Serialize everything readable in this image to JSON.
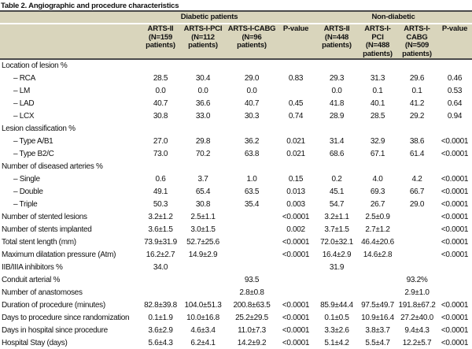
{
  "title": "Table 2. Angiographic and procedure characteristics",
  "colors": {
    "header_bg": "#d9d5bc",
    "rule": "#4a4a4a",
    "text": "#111111"
  },
  "groups": [
    {
      "label": "Diabetic patients"
    },
    {
      "label": "Non-diabetic"
    }
  ],
  "columns": [
    {
      "lines": [
        "ARTS-II",
        "(N=159",
        "patients)"
      ]
    },
    {
      "lines": [
        "ARTS-I-PCI",
        "(N=112",
        "patients)"
      ]
    },
    {
      "lines": [
        "ARTS-I-CABG",
        "(N=96",
        "patients)"
      ]
    },
    {
      "lines": [
        "P-value"
      ]
    },
    {
      "lines": [
        "ARTS-II",
        "(N=448",
        "patients)"
      ]
    },
    {
      "lines": [
        "ARTS-I-PCI",
        "(N=488",
        "patients)"
      ]
    },
    {
      "lines": [
        "ARTS-I-CABG",
        "(N=509",
        "patients)"
      ]
    },
    {
      "lines": [
        "P-value"
      ]
    }
  ],
  "rows": [
    {
      "label": "Location of lesion %",
      "section": true,
      "indent": false,
      "values": [
        "",
        "",
        "",
        "",
        "",
        "",
        "",
        ""
      ]
    },
    {
      "label": "– RCA",
      "section": false,
      "indent": true,
      "values": [
        "28.5",
        "30.4",
        "29.0",
        "0.83",
        "29.3",
        "31.3",
        "29.6",
        "0.46"
      ]
    },
    {
      "label": "– LM",
      "section": false,
      "indent": true,
      "values": [
        "0.0",
        "0.0",
        "0.0",
        "",
        "0.0",
        "0.1",
        "0.1",
        "0.53"
      ]
    },
    {
      "label": "– LAD",
      "section": false,
      "indent": true,
      "values": [
        "40.7",
        "36.6",
        "40.7",
        "0.45",
        "41.8",
        "40.1",
        "41.2",
        "0.64"
      ]
    },
    {
      "label": "– LCX",
      "section": false,
      "indent": true,
      "values": [
        "30.8",
        "33.0",
        "30.3",
        "0.74",
        "28.9",
        "28.5",
        "29.2",
        "0.94"
      ]
    },
    {
      "label": "Lesion classification %",
      "section": true,
      "indent": false,
      "values": [
        "",
        "",
        "",
        "",
        "",
        "",
        "",
        ""
      ]
    },
    {
      "label": "– Type A/B1",
      "section": false,
      "indent": true,
      "values": [
        "27.0",
        "29.8",
        "36.2",
        "0.021",
        "31.4",
        "32.9",
        "38.6",
        "<0.0001"
      ]
    },
    {
      "label": "– Type B2/C",
      "section": false,
      "indent": true,
      "values": [
        "73.0",
        "70.2",
        "63.8",
        "0.021",
        "68.6",
        "67.1",
        "61.4",
        "<0.0001"
      ]
    },
    {
      "label": "Number of diseased arteries %",
      "section": true,
      "indent": false,
      "values": [
        "",
        "",
        "",
        "",
        "",
        "",
        "",
        ""
      ]
    },
    {
      "label": "– Single",
      "section": false,
      "indent": true,
      "values": [
        "0.6",
        "3.7",
        "1.0",
        "0.15",
        "0.2",
        "4.0",
        "4.2",
        "<0.0001"
      ]
    },
    {
      "label": "– Double",
      "section": false,
      "indent": true,
      "values": [
        "49.1",
        "65.4",
        "63.5",
        "0.013",
        "45.1",
        "69.3",
        "66.7",
        "<0.0001"
      ]
    },
    {
      "label": "– Triple",
      "section": false,
      "indent": true,
      "values": [
        "50.3",
        "30.8",
        "35.4",
        "0.003",
        "54.7",
        "26.7",
        "29.0",
        "<0.0001"
      ]
    },
    {
      "label": "Number of stented lesions",
      "section": false,
      "indent": false,
      "values": [
        "3.2±1.2",
        "2.5±1.1",
        "",
        "<0.0001",
        "3.2±1.1",
        "2.5±0.9",
        "",
        "<0.0001"
      ]
    },
    {
      "label": "Number of stents implanted",
      "section": false,
      "indent": false,
      "values": [
        "3.6±1.5",
        "3.0±1.5",
        "",
        "0.002",
        "3.7±1.5",
        "2.7±1.2",
        "",
        "<0.0001"
      ]
    },
    {
      "label": "Total stent length (mm)",
      "section": false,
      "indent": false,
      "values": [
        "73.9±31.9",
        "52.7±25.6",
        "",
        "<0.0001",
        "72.0±32.1",
        "46.4±20.6",
        "",
        "<0.0001"
      ]
    },
    {
      "label": "Maximum dilatation pressure (Atm)",
      "section": false,
      "indent": false,
      "values": [
        "16.2±2.7",
        "14.9±2.9",
        "",
        "<0.0001",
        "16.4±2.9",
        "14.6±2.8",
        "",
        "<0.0001"
      ]
    },
    {
      "label": "IIB/IIIA inhibitors %",
      "section": false,
      "indent": false,
      "values": [
        "34.0",
        "",
        "",
        "",
        "31.9",
        "",
        "",
        ""
      ]
    },
    {
      "label": "Conduit arterial %",
      "section": false,
      "indent": false,
      "values": [
        "",
        "",
        "93.5",
        "",
        "",
        "",
        "93.2%",
        ""
      ]
    },
    {
      "label": "Number of anastomoses",
      "section": false,
      "indent": false,
      "values": [
        "",
        "",
        "2.8±0.8",
        "",
        "",
        "",
        "2.9±1.0",
        ""
      ]
    },
    {
      "label": "Duration of procedure (minutes)",
      "section": false,
      "indent": false,
      "values": [
        "82.8±39.8",
        "104.0±51.3",
        "200.8±63.5",
        "<0.0001",
        "85.9±44.4",
        "97.5±49.7",
        "191.8±67.2",
        "<0.0001"
      ]
    },
    {
      "label": "Days to procedure since randomization",
      "section": false,
      "indent": false,
      "values": [
        "0.1±1.9",
        "10.0±16.8",
        "25.2±29.5",
        "<0.0001",
        "0.1±0.5",
        "10.9±16.4",
        "27.2±40.0",
        "<0.0001"
      ]
    },
    {
      "label": "Days in hospital since procedure",
      "section": false,
      "indent": false,
      "values": [
        "3.6±2.9",
        "4.6±3.4",
        "11.0±7.3",
        "<0.0001",
        "3.3±2.6",
        "3.8±3.7",
        "9.4±4.3",
        "<0.0001"
      ]
    },
    {
      "label": "Hospital Stay (days)",
      "section": false,
      "indent": false,
      "values": [
        "5.6±4.3",
        "6.2±4.1",
        "14.2±9.2",
        "<0.0001",
        "5.1±4.2",
        "5.5±4.7",
        "12.2±5.7",
        "<0.0001"
      ]
    }
  ]
}
